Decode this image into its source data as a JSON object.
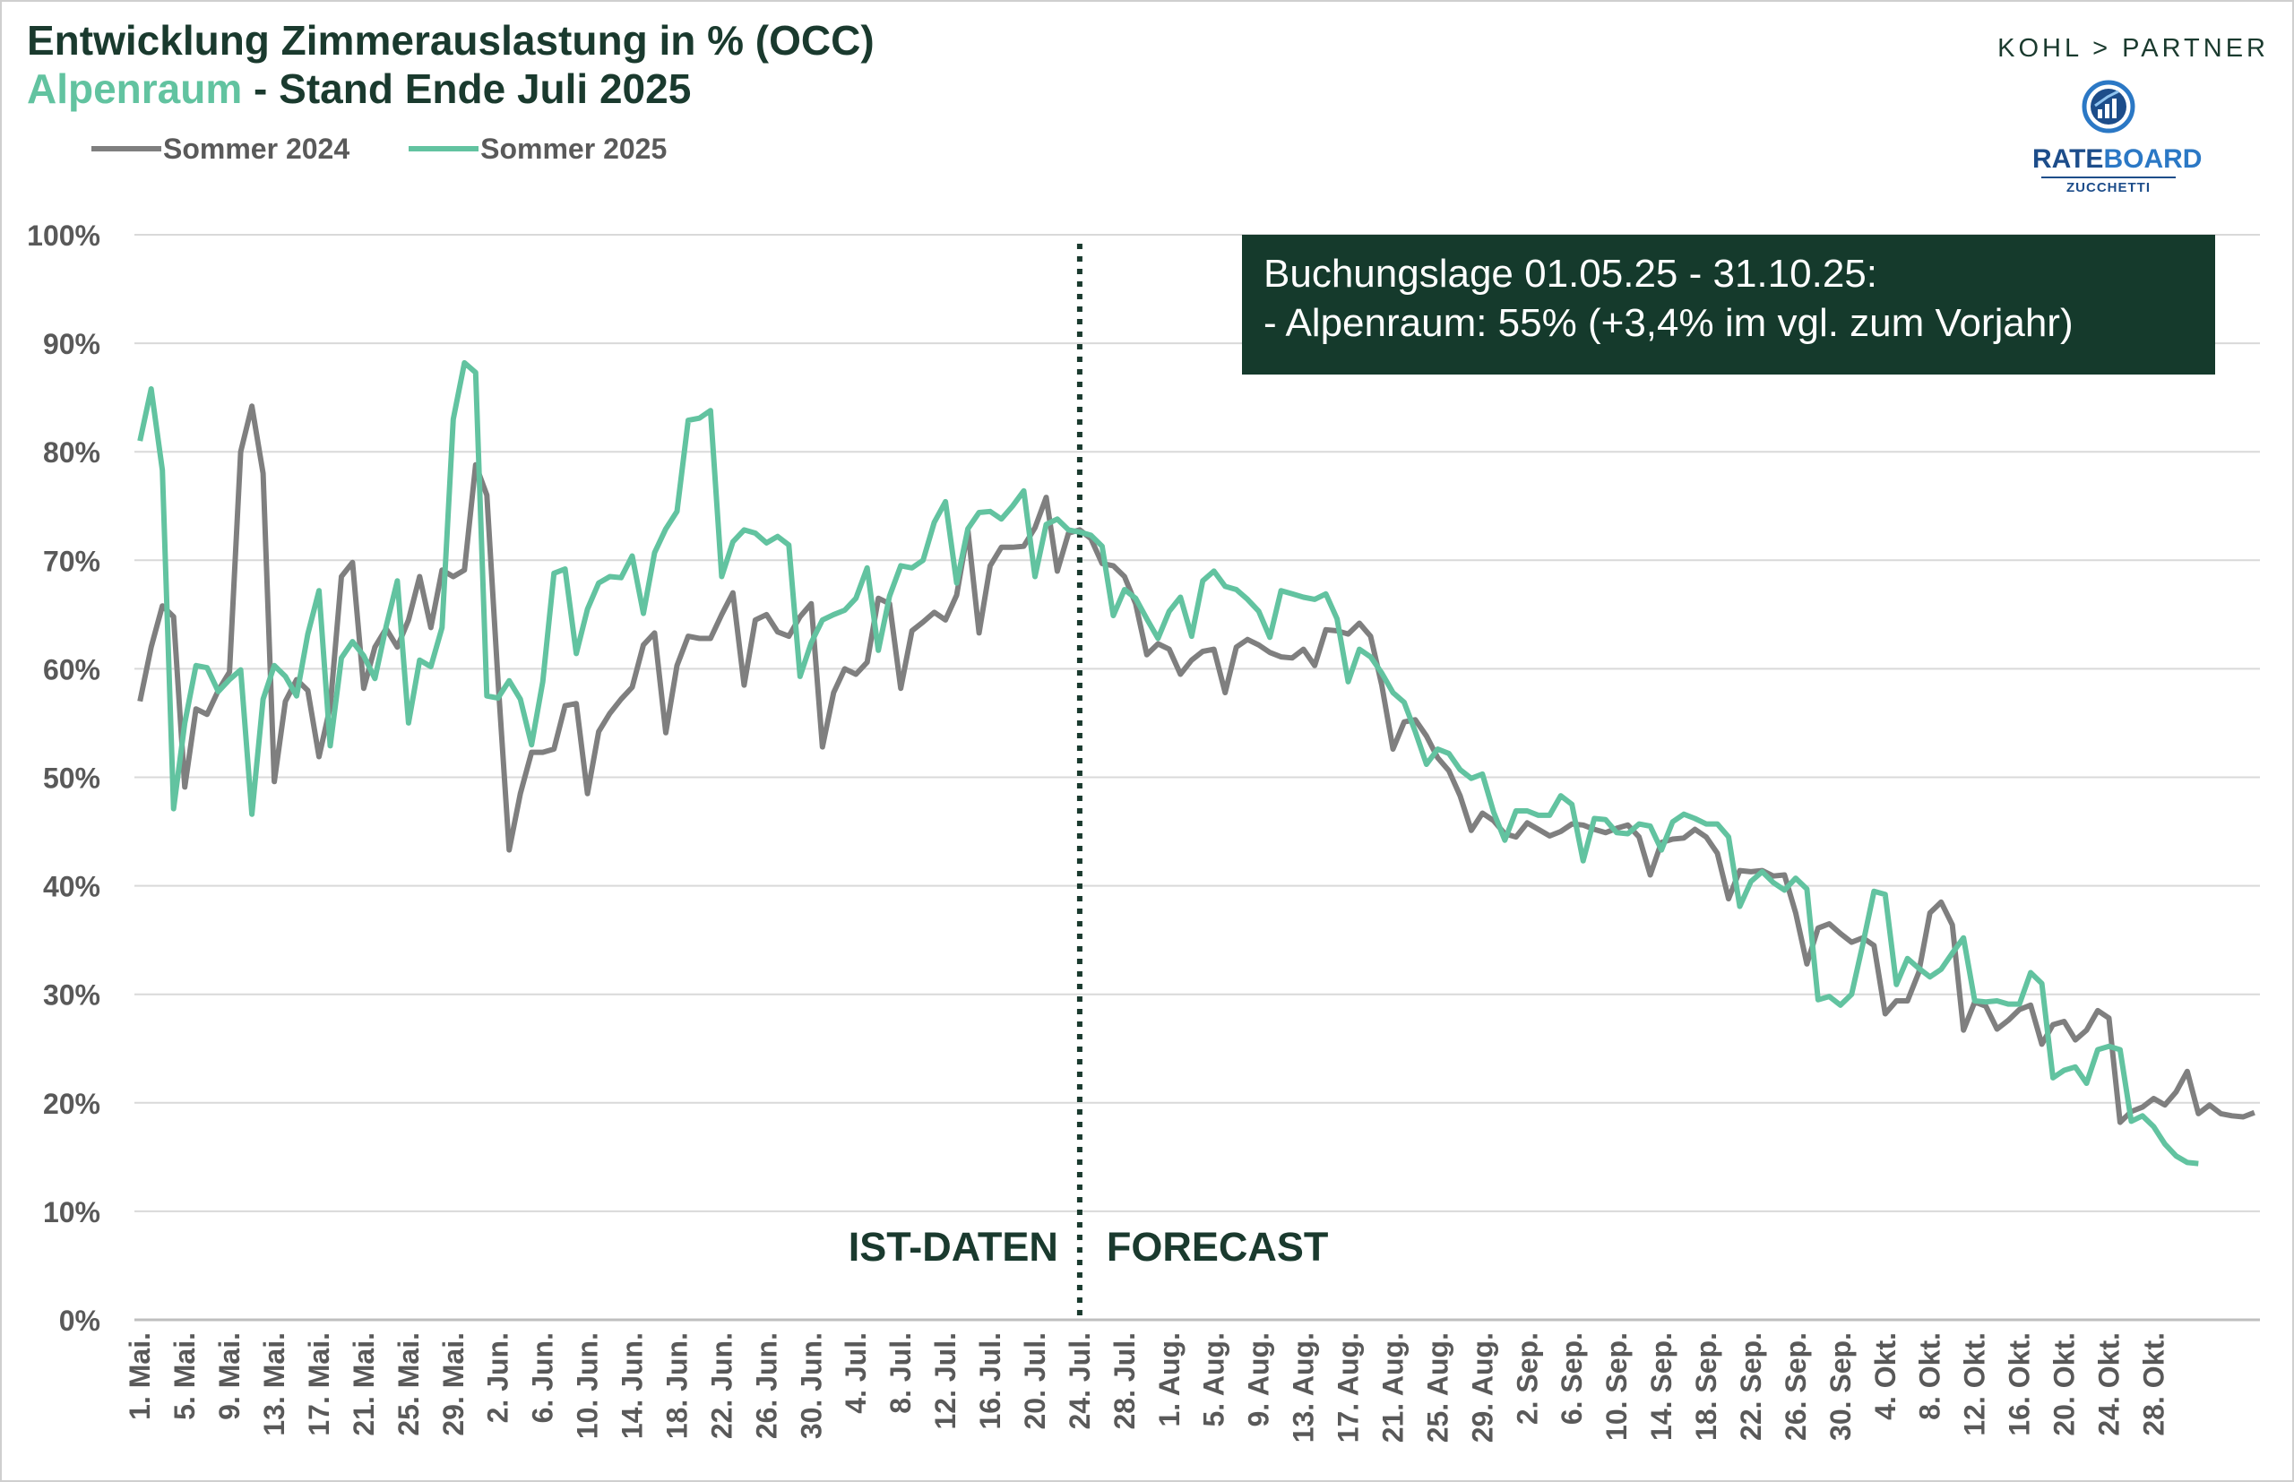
{
  "title": "Entwicklung Zimmerauslastung in % (OCC)",
  "subtitle_highlight": "Alpenraum",
  "subtitle_rest": " - Stand Ende Juli 2025",
  "logos": {
    "kohl_partner": "KOHL > PARTNER",
    "rateboard_part1": "RATE",
    "rateboard_part2": "BOARD",
    "rateboard_sub": "ZUCCHETTI"
  },
  "infobox": {
    "line1": "Buchungslage 01.05.25 - 31.10.25:",
    "line2": "- Alpenraum:  55% (+3,4% im vgl. zum Vorjahr)"
  },
  "colors": {
    "series_2024": "#7f7f7f",
    "series_2025": "#62c3a0",
    "title": "#1a3a2e",
    "infobox": "#153a2c"
  },
  "chart_data": {
    "type": "line",
    "x_start": "1. Mai.",
    "x_end": "31. Okt.",
    "ylim": [
      0,
      100
    ],
    "y_ticks": [
      "0%",
      "10%",
      "20%",
      "30%",
      "40%",
      "50%",
      "60%",
      "70%",
      "80%",
      "90%",
      "100%"
    ],
    "x_tick_labels": [
      "1. Mai.",
      "5. Mai.",
      "9. Mai.",
      "13. Mai.",
      "17. Mai.",
      "21. Mai.",
      "25. Mai.",
      "29. Mai.",
      "2. Jun.",
      "6. Jun.",
      "10. Jun.",
      "14. Jun.",
      "18. Jun.",
      "22. Jun.",
      "26. Jun.",
      "30. Jun.",
      "4. Jul.",
      "8. Jul.",
      "12. Jul.",
      "16. Jul.",
      "20. Jul.",
      "24. Jul.",
      "28. Jul.",
      "1. Aug.",
      "5. Aug.",
      "9. Aug.",
      "13. Aug.",
      "17. Aug.",
      "21. Aug.",
      "25. Aug.",
      "29. Aug.",
      "2. Sep.",
      "6. Sep.",
      "10. Sep.",
      "14. Sep.",
      "18. Sep.",
      "22. Sep.",
      "26. Sep.",
      "30. Sep.",
      "4. Okt.",
      "8. Okt.",
      "12. Okt.",
      "16. Okt.",
      "20. Okt.",
      "24. Okt.",
      "28. Okt."
    ],
    "grid": true,
    "legend": "top-left",
    "divider_label": "24. Jul.",
    "annotations": {
      "left": "IST-DATEN",
      "right": "FORECAST"
    },
    "series": [
      {
        "name": "Sommer 2024",
        "values": [
          57,
          62,
          65.8,
          64.8,
          49.1,
          56.3,
          55.8,
          58,
          59.7,
          80,
          84.2,
          78,
          49.6,
          57,
          59,
          58,
          51.9,
          56.5,
          68.5,
          69.8,
          58.2,
          62,
          63.7,
          62,
          64.5,
          68.5,
          63.8,
          69.1,
          68.5,
          69.1,
          78.8,
          76,
          59,
          43.3,
          48.5,
          52.3,
          52.3,
          52.6,
          56.6,
          56.8,
          48.5,
          54.2,
          55.9,
          57.2,
          58.3,
          62.2,
          63.3,
          54.1,
          60.3,
          63,
          62.8,
          62.8,
          65,
          67,
          58.5,
          64.5,
          65,
          63.4,
          63,
          64.8,
          66,
          52.8,
          57.8,
          60,
          59.5,
          60.6,
          66.5,
          66,
          58.2,
          63.5,
          64.3,
          65.2,
          64.5,
          66.8,
          72.8,
          63.3,
          69.5,
          71.2,
          71.2,
          71.3,
          73,
          75.8,
          69,
          72.5,
          72.8,
          72,
          69.7,
          69.5,
          68.5,
          66,
          61.3,
          62.3,
          61.8,
          59.5,
          60.8,
          61.6,
          61.8,
          57.8,
          62,
          62.7,
          62.2,
          61.5,
          61.1,
          61,
          61.8,
          60.3,
          63.6,
          63.5,
          63.2,
          64.2,
          63,
          58.5,
          52.6,
          55.1,
          55.3,
          53.8,
          51.8,
          50.6,
          48.3,
          45.1,
          46.7,
          46,
          44.8,
          44.5,
          45.8,
          45.2,
          44.6,
          45,
          45.7,
          45.6,
          45.2,
          44.9,
          45.3,
          45.6,
          44.5,
          41,
          44,
          44.3,
          44.4,
          45.2,
          44.5,
          43,
          38.8,
          41.4,
          41.3,
          41.4,
          40.9,
          41,
          37.5,
          32.8,
          36.1,
          36.5,
          35.6,
          34.8,
          35.2,
          34.5,
          28.2,
          29.4,
          29.4,
          32,
          37.5,
          38.5,
          36.4,
          26.7,
          29.3,
          28.9,
          26.8,
          27.6,
          28.6,
          29,
          25.4,
          27.2,
          27.5,
          25.8,
          26.7,
          28.5,
          27.8,
          18.2,
          19.2,
          19.6,
          20.4,
          19.8,
          21,
          22.9,
          19,
          19.8,
          19,
          18.8,
          18.7,
          19.1
        ]
      },
      {
        "name": "Sommer 2025",
        "values": [
          81,
          85.8,
          78.3,
          47.1,
          55,
          60.3,
          60.1,
          57.9,
          59,
          59.9,
          46.6,
          57.2,
          60.3,
          59.3,
          57.5,
          63.2,
          67.2,
          52.9,
          61,
          62.5,
          61.2,
          59.1,
          63.9,
          68.1,
          55,
          60.8,
          60.2,
          63.8,
          83,
          88.2,
          87.3,
          57.5,
          57.3,
          58.9,
          57.2,
          53,
          58.8,
          68.8,
          69.2,
          61.4,
          65.5,
          67.9,
          68.5,
          68.4,
          70.4,
          65.1,
          70.7,
          72.9,
          74.5,
          82.9,
          83.1,
          83.8,
          68.5,
          71.7,
          72.8,
          72.5,
          71.6,
          72.2,
          71.4,
          59.3,
          62.4,
          64.5,
          65,
          65.4,
          66.5,
          69.3,
          61.7,
          66.7,
          69.5,
          69.3,
          70,
          73.5,
          75.4,
          67.9,
          72.9,
          74.4,
          74.5,
          73.8,
          75,
          76.4,
          68.5,
          73.3,
          73.8,
          72.8,
          72.6,
          72.3,
          71.3,
          64.9,
          67.3,
          66.5,
          64.6,
          62.8,
          65.3,
          66.6,
          63,
          68.1,
          69,
          67.6,
          67.3,
          66.4,
          65.3,
          62.9,
          67.2,
          66.9,
          66.6,
          66.4,
          66.9,
          64.6,
          58.8,
          61.8,
          61.1,
          59.6,
          57.8,
          56.9,
          54.2,
          51.2,
          52.6,
          52.2,
          50.7,
          49.9,
          50.3,
          46.8,
          44.2,
          46.9,
          46.9,
          46.5,
          46.5,
          48.3,
          47.5,
          42.3,
          46.2,
          46.1,
          44.9,
          44.8,
          45.7,
          45.5,
          43.3,
          45.9,
          46.6,
          46.2,
          45.7,
          45.7,
          44.5,
          38.1,
          40.4,
          41.3,
          40.3,
          39.6,
          40.7,
          39.7,
          29.5,
          29.8,
          29,
          30,
          34.6,
          39.5,
          39.2,
          30.9,
          33.3,
          32.4,
          31.6,
          32.3,
          33.8,
          35.2,
          29.4,
          29.3,
          29.4,
          29.1,
          29.1,
          32,
          31,
          22.3,
          23,
          23.3,
          21.8,
          24.9,
          25.2,
          24.9,
          18.3,
          18.8,
          17.8,
          16.2,
          15.1,
          14.5,
          14.4
        ]
      }
    ]
  }
}
